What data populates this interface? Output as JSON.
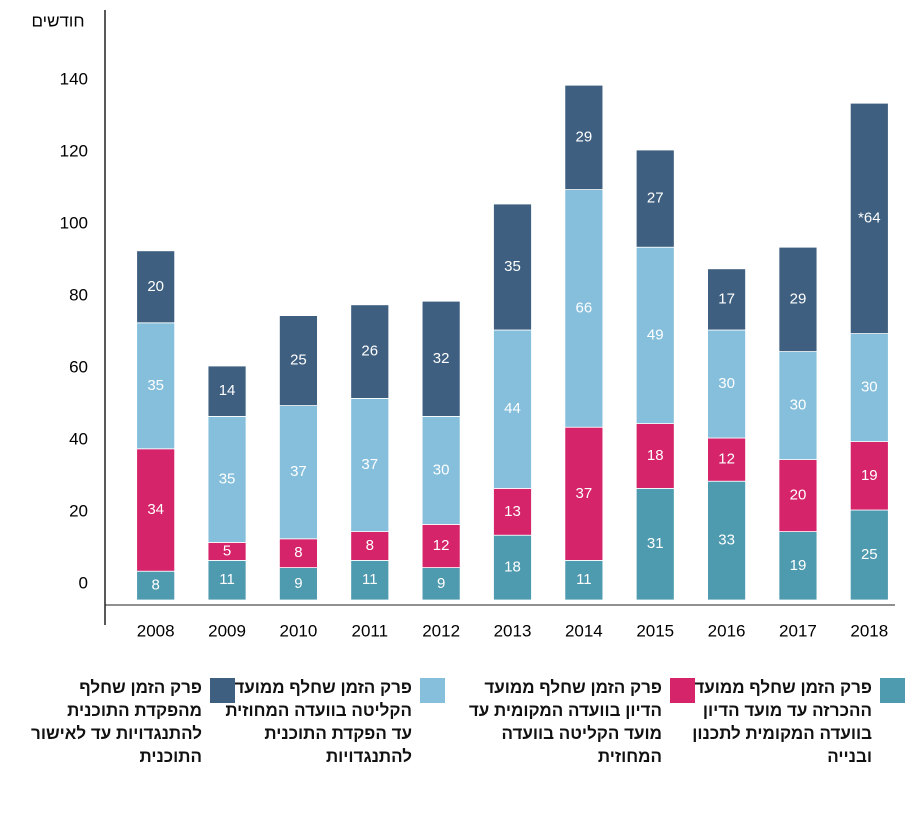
{
  "chart_data": {
    "type": "stacked_bar",
    "y_label": "חודשים",
    "categories": [
      "2008",
      "2009",
      "2010",
      "2011",
      "2012",
      "2013",
      "2014",
      "2015",
      "2016",
      "2017",
      "2018"
    ],
    "series": [
      {
        "name": "פרק הזמן שחלף ממועד ההכרזה עד מועד הדיון בוועדה המקומית לתכנון ובנייה",
        "color": "#4e9aaf",
        "values": [
          8,
          11,
          9,
          11,
          9,
          18,
          11,
          31,
          33,
          19,
          25
        ]
      },
      {
        "name": "פרק הזמן שחלף ממועד הדיון בוועדה המקומית עד מועד הקליטה בוועדה המחוזית",
        "color": "#d6246a",
        "values": [
          34,
          5,
          8,
          8,
          12,
          13,
          37,
          18,
          12,
          20,
          19
        ]
      },
      {
        "name": "פרק הזמן שחלף ממועד הקליטה בוועדה המחוזית עד הפקדת התוכנית להתנגדויות",
        "color": "#85bfdc",
        "values": [
          35,
          35,
          37,
          37,
          30,
          44,
          66,
          49,
          30,
          30,
          30
        ]
      },
      {
        "name": "פרק הזמן שחלף מהפקדת התוכנית להתנגדויות עד לאישור התוכנית",
        "color": "#3e5f80",
        "values": [
          20,
          14,
          25,
          26,
          32,
          35,
          29,
          27,
          17,
          29,
          64
        ],
        "value_labels": [
          "20",
          "14",
          "25",
          "26",
          "32",
          "35",
          "29",
          "27",
          "17",
          "29",
          "*64"
        ]
      }
    ],
    "ylim": [
      0,
      150
    ],
    "yticks": [
      0,
      20,
      40,
      60,
      80,
      100,
      120,
      140
    ],
    "grid": false
  }
}
